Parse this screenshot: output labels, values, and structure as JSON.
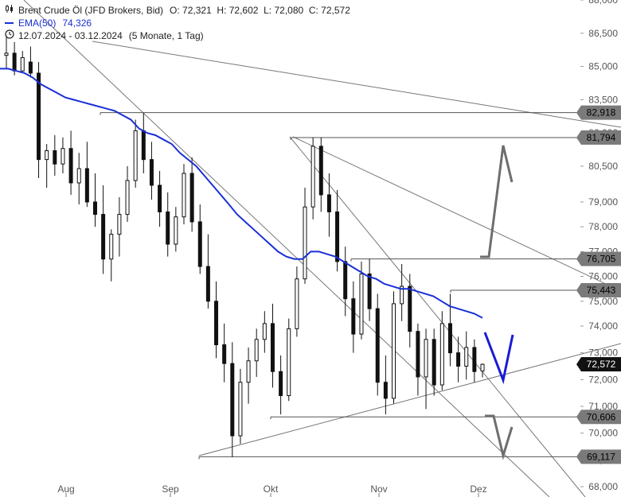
{
  "legend": {
    "instrument": "Brent Crude Öl (JFD Brokers, Bid)",
    "ohlc": "O: 72,321  H: 72,602  L: 72,080  C: 72,572",
    "ema_label": "EMA(50)",
    "ema_value": "74,326",
    "range": "12.07.2024 - 03.12.2024",
    "period": "(5 Monate, 1 Tag)"
  },
  "colors": {
    "ema": "#1a2fd6",
    "candle": "#111111",
    "level_line": "#555555",
    "trendline": "#777777",
    "label_bg": "#7a7a7a",
    "label_text": "#000000",
    "arrow_grey": "#6e6e6e",
    "arrow_blue": "#1a1ad6"
  },
  "chart_data": {
    "type": "candlestick",
    "title": "Brent Crude Öl (JFD Brokers, Bid)",
    "x_months": [
      "Aug",
      "Sep",
      "Okt",
      "Nov",
      "Dez"
    ],
    "y_ticks": [
      "68,000",
      "69,000",
      "70,000",
      "71,000",
      "72,000",
      "73,000",
      "74,000",
      "75,000",
      "76,000",
      "77,000",
      "78,000",
      "79,000",
      "80,500",
      "82,000",
      "83,500",
      "85,000",
      "86,500",
      "88,000"
    ],
    "ylim": [
      67.8,
      88.0
    ],
    "last_price": "72,572",
    "horizontal_levels": [
      {
        "label": "82,918",
        "value": 82.918,
        "from": "2024-08-09"
      },
      {
        "label": "81,794",
        "value": 81.794,
        "from": "2024-10-07"
      },
      {
        "label": "76,705",
        "value": 76.705,
        "from": "2024-10-24"
      },
      {
        "label": "75,443",
        "value": 75.443,
        "from": "2024-11-22"
      },
      {
        "label": "70,606",
        "value": 70.606,
        "from": "2024-10-01"
      },
      {
        "label": "69,117",
        "value": 69.117,
        "from": "2024-09-10"
      }
    ],
    "ema": {
      "name": "EMA(50)",
      "values": [
        84.9,
        84.9,
        84.8,
        84.7,
        84.5,
        84.2,
        84.0,
        83.8,
        83.6,
        83.5,
        83.4,
        83.3,
        83.2,
        83.1,
        83.0,
        82.8,
        82.6,
        82.2,
        82.0,
        81.9,
        81.7,
        81.5,
        81.1,
        80.8,
        80.5,
        80.1,
        79.7,
        79.3,
        78.9,
        78.5,
        78.2,
        77.9,
        77.6,
        77.3,
        77.0,
        76.8,
        76.7,
        76.7,
        77.0,
        77.0,
        76.9,
        76.8,
        76.6,
        76.4,
        76.2,
        76.0,
        75.9,
        75.7,
        75.6,
        75.5,
        75.5,
        75.4,
        75.3,
        75.2,
        75.0,
        74.8,
        74.7,
        74.6,
        74.5,
        74.33
      ]
    },
    "candles": [
      [
        85.5,
        86.4,
        84.9,
        85.6
      ],
      [
        85.6,
        86.1,
        84.6,
        84.8
      ],
      [
        84.8,
        85.7,
        84.7,
        85.4
      ],
      [
        85.2,
        85.9,
        84.5,
        84.7
      ],
      [
        84.7,
        85.2,
        80.0,
        80.8
      ],
      [
        80.8,
        81.5,
        79.6,
        81.2
      ],
      [
        81.2,
        81.9,
        80.1,
        80.6
      ],
      [
        80.6,
        81.8,
        80.2,
        81.3
      ],
      [
        81.3,
        82.1,
        79.3,
        79.8
      ],
      [
        79.8,
        81.1,
        78.9,
        80.4
      ],
      [
        80.4,
        81.6,
        78.8,
        79.0
      ],
      [
        79.0,
        80.2,
        78.0,
        78.5
      ],
      [
        78.5,
        79.7,
        76.1,
        76.7
      ],
      [
        76.7,
        77.9,
        75.8,
        77.7
      ],
      [
        77.7,
        79.2,
        76.8,
        78.5
      ],
      [
        78.5,
        80.5,
        78.2,
        79.9
      ],
      [
        79.9,
        82.6,
        79.6,
        82.1
      ],
      [
        82.1,
        82.9,
        80.2,
        80.8
      ],
      [
        80.8,
        81.6,
        79.1,
        79.7
      ],
      [
        79.7,
        80.3,
        78.0,
        78.6
      ],
      [
        78.6,
        79.4,
        76.8,
        77.3
      ],
      [
        77.3,
        78.8,
        77.0,
        78.4
      ],
      [
        78.4,
        80.6,
        78.1,
        80.2
      ],
      [
        80.2,
        80.9,
        77.8,
        78.2
      ],
      [
        78.2,
        78.9,
        76.1,
        76.4
      ],
      [
        76.4,
        77.7,
        74.7,
        75.0
      ],
      [
        75.0,
        75.8,
        72.8,
        73.3
      ],
      [
        73.3,
        74.1,
        71.9,
        72.6
      ],
      [
        72.6,
        73.4,
        69.1,
        69.9
      ],
      [
        69.9,
        72.4,
        69.6,
        71.9
      ],
      [
        71.9,
        73.2,
        71.1,
        72.7
      ],
      [
        72.7,
        73.9,
        72.1,
        73.5
      ],
      [
        73.5,
        74.6,
        73.0,
        74.1
      ],
      [
        74.1,
        74.9,
        71.7,
        72.3
      ],
      [
        72.3,
        72.9,
        70.7,
        71.4
      ],
      [
        71.4,
        74.3,
        71.2,
        73.9
      ],
      [
        73.9,
        76.4,
        73.6,
        75.9
      ],
      [
        75.9,
        79.6,
        75.7,
        78.8
      ],
      [
        78.8,
        81.8,
        78.3,
        81.4
      ],
      [
        81.4,
        81.8,
        78.6,
        79.3
      ],
      [
        79.3,
        80.2,
        77.6,
        78.6
      ],
      [
        78.6,
        79.5,
        76.2,
        76.6
      ],
      [
        76.6,
        77.2,
        74.4,
        75.1
      ],
      [
        75.1,
        75.8,
        73.0,
        73.7
      ],
      [
        73.7,
        76.6,
        73.5,
        76.1
      ],
      [
        76.1,
        76.7,
        74.2,
        74.7
      ],
      [
        74.7,
        75.3,
        71.4,
        71.9
      ],
      [
        71.9,
        72.9,
        70.7,
        71.3
      ],
      [
        71.3,
        75.4,
        71.1,
        74.9
      ],
      [
        74.9,
        76.5,
        74.2,
        75.6
      ],
      [
        75.6,
        76.1,
        73.2,
        73.8
      ],
      [
        73.8,
        74.1,
        71.4,
        72.1
      ],
      [
        72.1,
        73.9,
        70.9,
        73.5
      ],
      [
        73.5,
        73.9,
        71.4,
        71.8
      ],
      [
        71.8,
        74.6,
        71.6,
        74.1
      ],
      [
        74.1,
        75.3,
        72.5,
        73.0
      ],
      [
        73.0,
        73.6,
        71.9,
        72.5
      ],
      [
        72.5,
        73.8,
        72.0,
        73.2
      ],
      [
        73.2,
        73.5,
        71.9,
        72.3
      ],
      [
        72.32,
        72.6,
        72.08,
        72.57
      ]
    ]
  }
}
